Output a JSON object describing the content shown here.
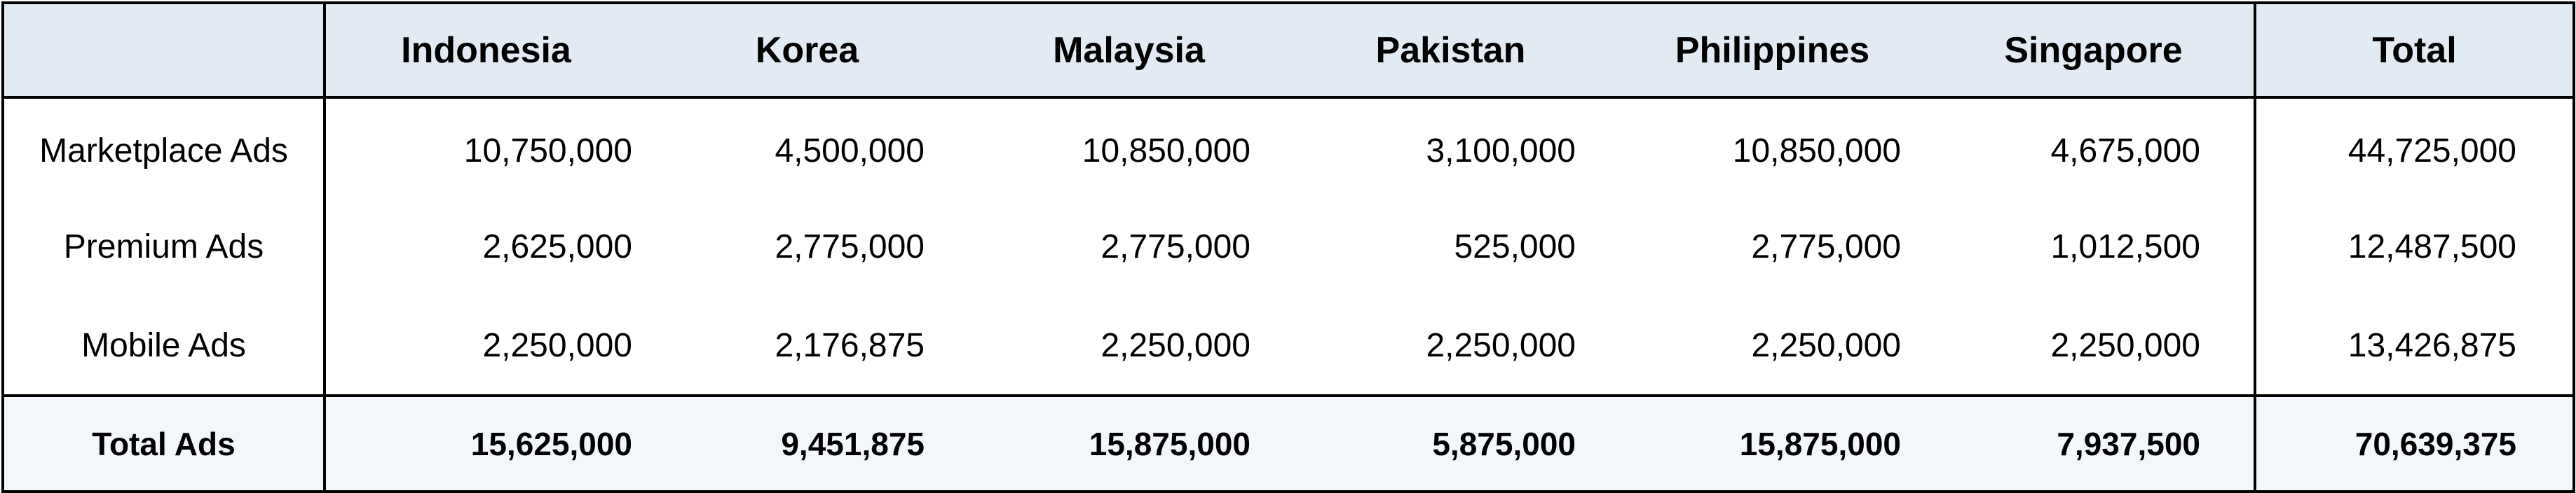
{
  "table": {
    "columns": [
      "",
      "Indonesia",
      "Korea",
      "Malaysia",
      "Pakistan",
      "Philippines",
      "Singapore",
      "Total"
    ],
    "rows": [
      {
        "label": "Marketplace Ads",
        "values": [
          "10,750,000",
          "4,500,000",
          "10,850,000",
          "3,100,000",
          "10,850,000",
          "4,675,000"
        ],
        "total": "44,725,000"
      },
      {
        "label": "Premium Ads",
        "values": [
          "2,625,000",
          "2,775,000",
          "2,775,000",
          "525,000",
          "2,775,000",
          "1,012,500"
        ],
        "total": "12,487,500"
      },
      {
        "label": "Mobile Ads",
        "values": [
          "2,250,000",
          "2,176,875",
          "2,250,000",
          "2,250,000",
          "2,250,000",
          "2,250,000"
        ],
        "total": "13,426,875"
      }
    ],
    "total_row": {
      "label": "Total Ads",
      "values": [
        "15,625,000",
        "9,451,875",
        "15,875,000",
        "5,875,000",
        "15,875,000",
        "7,937,500"
      ],
      "total": "70,639,375"
    }
  },
  "colors": {
    "header_bg": "#e2ebf4",
    "total_row_bg": "#f3f7fb",
    "border": "#000000"
  }
}
